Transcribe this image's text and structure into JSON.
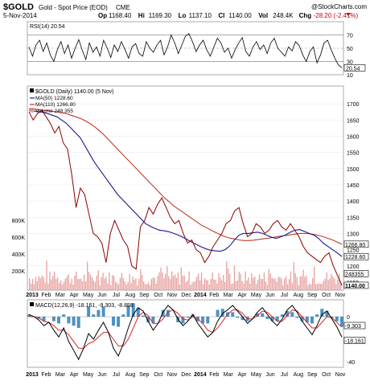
{
  "header": {
    "symbol": "$GOLD",
    "name": "Gold - Spot Price (EOD)",
    "exchange": "CME",
    "date": "5-Nov-2014",
    "copyright": "@StockCharts.com",
    "stats": [
      {
        "label": "Op",
        "value": "1168.40"
      },
      {
        "label": "Hi",
        "value": "1169.30"
      },
      {
        "label": "Lo",
        "value": "1137.10"
      },
      {
        "label": "Cl",
        "value": "1140.00"
      },
      {
        "label": "Vol",
        "value": "248.4K"
      },
      {
        "label": "Chg",
        "value": "-28.20 (-2.41%)"
      }
    ]
  },
  "chart_data": [
    {
      "type": "line",
      "panel": "rsi",
      "title": "RSI(14) 20.54",
      "ylim": [
        10,
        90
      ],
      "y_ticks": [
        "70",
        "50",
        "30",
        "10"
      ],
      "reference_lines": [
        70,
        30
      ],
      "current_value_label": "20.54",
      "series": [
        {
          "name": "RSI(14)",
          "color": "#000000",
          "values": [
            52,
            38,
            55,
            62,
            45,
            58,
            40,
            30,
            48,
            60,
            42,
            55,
            35,
            50,
            63,
            47,
            33,
            58,
            44,
            52,
            38,
            62,
            50,
            36,
            55,
            45,
            60,
            48,
            35,
            52,
            57,
            42,
            38,
            60,
            50,
            44,
            55,
            62,
            40,
            52,
            70,
            58,
            42,
            55,
            68,
            72,
            60,
            45,
            55,
            62,
            48,
            38,
            52,
            65,
            58,
            44,
            50,
            35,
            48,
            58,
            66,
            45,
            38,
            52,
            60,
            48,
            55,
            42,
            58,
            65,
            50,
            44,
            38,
            52,
            46,
            60,
            54,
            40,
            30,
            45,
            52,
            28,
            40,
            58,
            62,
            48,
            35,
            25,
            20.54
          ]
        }
      ]
    },
    {
      "type": "line",
      "panel": "price",
      "title": "$GOLD (Daily) 1140.00 (5 Nov)",
      "ylim": [
        1125,
        1755
      ],
      "y_ticks": [
        "1700",
        "1650",
        "1600",
        "1550",
        "1500",
        "1450",
        "1400",
        "1350",
        "1300",
        "1250",
        "1200",
        "1150"
      ],
      "current_value_labels": [
        "1266.80",
        "1228.60",
        "1140.00"
      ],
      "volume_axis": [
        "800K",
        "600K",
        "400K",
        "200K"
      ],
      "volume_label": "248355",
      "series": [
        {
          "name": "MA(50) 1228.60",
          "color": "#1a1a8c",
          "values": [
            1680,
            1678,
            1676,
            1674,
            1670,
            1665,
            1660,
            1650,
            1640,
            1625,
            1610,
            1595,
            1570,
            1545,
            1520,
            1500,
            1480,
            1460,
            1440,
            1420,
            1405,
            1390,
            1375,
            1360,
            1345,
            1330,
            1322,
            1315,
            1310,
            1308,
            1305,
            1300,
            1295,
            1288,
            1280,
            1272,
            1265,
            1258,
            1252,
            1248,
            1246,
            1245,
            1250,
            1262,
            1280,
            1295,
            1300,
            1300,
            1302,
            1304,
            1300,
            1294,
            1288,
            1285,
            1290,
            1296,
            1304,
            1310,
            1312,
            1306,
            1300,
            1295,
            1285,
            1270,
            1260,
            1250,
            1240,
            1228.6
          ]
        },
        {
          "name": "MA(110) 1266.80",
          "color": "#c0392b",
          "values": [
            1685,
            1684,
            1682,
            1680,
            1679,
            1677,
            1675,
            1672,
            1670,
            1665,
            1660,
            1655,
            1648,
            1640,
            1630,
            1618,
            1605,
            1590,
            1575,
            1560,
            1545,
            1530,
            1515,
            1500,
            1485,
            1470,
            1455,
            1440,
            1425,
            1410,
            1398,
            1385,
            1375,
            1365,
            1355,
            1345,
            1335,
            1325,
            1318,
            1310,
            1303,
            1296,
            1290,
            1286,
            1283,
            1280,
            1278,
            1278,
            1279,
            1281,
            1283,
            1285,
            1287,
            1290,
            1292,
            1294,
            1296,
            1298,
            1300,
            1300,
            1299,
            1297,
            1294,
            1290,
            1285,
            1280,
            1273,
            1266.8
          ]
        },
        {
          "name": "$GOLD",
          "color": "#8b0000",
          "values": [
            1675,
            1650,
            1670,
            1680,
            1660,
            1640,
            1610,
            1630,
            1580,
            1560,
            1480,
            1380,
            1440,
            1420,
            1360,
            1300,
            1290,
            1270,
            1210,
            1300,
            1340,
            1310,
            1280,
            1260,
            1200,
            1190,
            1320,
            1340,
            1380,
            1360,
            1390,
            1410,
            1380,
            1350,
            1330,
            1340,
            1300,
            1270,
            1280,
            1250,
            1240,
            1210,
            1230,
            1260,
            1280,
            1300,
            1330,
            1340,
            1370,
            1380,
            1330,
            1290,
            1300,
            1330,
            1320,
            1300,
            1310,
            1330,
            1340,
            1320,
            1310,
            1330,
            1310,
            1290,
            1260,
            1240,
            1230,
            1220,
            1210,
            1230,
            1240,
            1200,
            1170,
            1140
          ]
        }
      ],
      "volume": {
        "name": "Volume 248,355",
        "color": "#e8a0a0"
      }
    },
    {
      "type": "line",
      "panel": "macd",
      "title": "MACD(12,26,9) -18.161, -9.303, -8.858",
      "ylim": [
        -45,
        15
      ],
      "y_ticks": [
        "0",
        "-20",
        "-40"
      ],
      "current_value_labels": [
        "-9.303",
        "-18.161"
      ],
      "series": [
        {
          "name": "MACD",
          "color": "#000000",
          "values": [
            2,
            0,
            -3,
            -8,
            -5,
            -12,
            -18,
            -10,
            -22,
            -30,
            -38,
            -28,
            -15,
            -20,
            -12,
            -5,
            -14,
            -28,
            -35,
            -24,
            -10,
            2,
            8,
            5,
            -4,
            -12,
            -6,
            4,
            10,
            6,
            -2,
            -8,
            -4,
            2,
            -6,
            -12,
            -18,
            -14,
            -4,
            3,
            6,
            10,
            5,
            0,
            -6,
            -2,
            4,
            8,
            2,
            -4,
            -8,
            -2,
            6,
            10,
            4,
            -4,
            -10,
            -16,
            -8,
            2,
            5,
            -2,
            -9,
            -18.161
          ]
        },
        {
          "name": "Signal",
          "color": "#d62728",
          "values": [
            0,
            0,
            -1,
            -4,
            -5,
            -8,
            -12,
            -12,
            -16,
            -22,
            -28,
            -28,
            -24,
            -22,
            -18,
            -14,
            -14,
            -20,
            -26,
            -26,
            -20,
            -10,
            0,
            4,
            1,
            -6,
            -6,
            -2,
            4,
            6,
            3,
            -2,
            -3,
            0,
            -2,
            -6,
            -12,
            -14,
            -10,
            -4,
            2,
            6,
            6,
            3,
            -2,
            -2,
            1,
            5,
            4,
            0,
            -4,
            -4,
            1,
            6,
            5,
            0,
            -5,
            -10,
            -10,
            -5,
            0,
            -1,
            -5,
            -9.303
          ]
        }
      ]
    }
  ],
  "x_axis": {
    "labels": [
      "2013",
      "Feb",
      "Mar",
      "Apr",
      "May",
      "Jun",
      "Jul",
      "Aug",
      "Sep",
      "Oct",
      "Nov",
      "Dec",
      "2014",
      "Feb",
      "Mar",
      "Apr",
      "May",
      "Jun",
      "Jul",
      "Aug",
      "Sep",
      "Oct",
      "Nov"
    ]
  },
  "colors": {
    "ma50": "#1a1a8c",
    "ma110": "#c0392b",
    "price": "#8b0000",
    "volume": "#e8a0a0",
    "macd_hist": "#1f77b4",
    "grid": "#cccccc"
  }
}
